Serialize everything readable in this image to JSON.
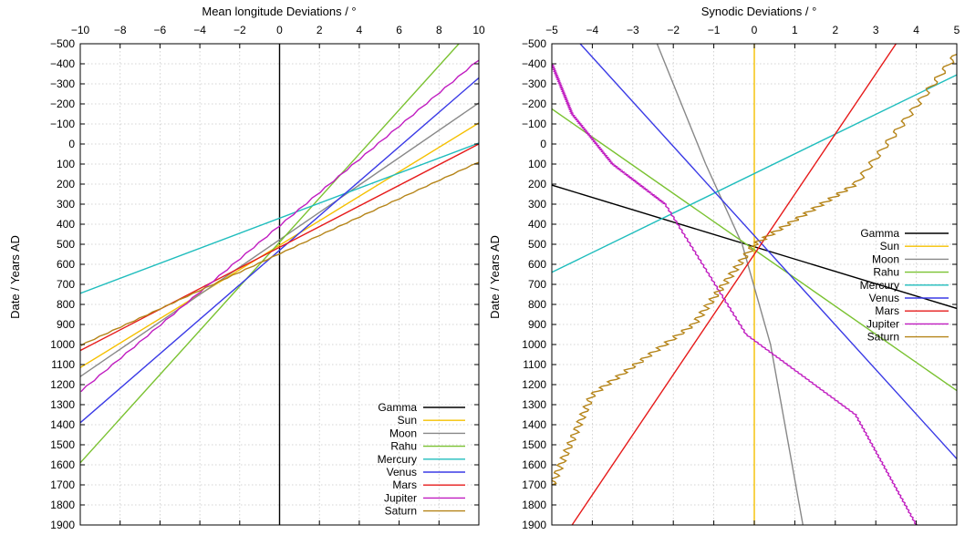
{
  "colors": {
    "Gamma": "#000000",
    "Sun": "#f5c000",
    "Moon": "#888888",
    "Rahu": "#7ac231",
    "Mercury": "#1fbdbd",
    "Venus": "#3a3ae6",
    "Mars": "#e61a1a",
    "Jupiter": "#c01cc0",
    "Saturn": "#b58418"
  },
  "chart_data": [
    {
      "type": "line",
      "title": "Mean longitude Deviations / °",
      "xlabel": "",
      "ylabel": "Date / Years AD",
      "xlim": [
        -10,
        10
      ],
      "ylim": [
        -500,
        1900
      ],
      "y_inverted": true,
      "x_axis_position": "top",
      "xticks": [
        "−10",
        "−8",
        "−6",
        "−4",
        "−2",
        "0",
        "2",
        "4",
        "6",
        "8",
        "10"
      ],
      "yticks": [
        "−500",
        "−400",
        "−300",
        "−200",
        "−100",
        "0",
        "100",
        "200",
        "300",
        "400",
        "500",
        "600",
        "700",
        "800",
        "900",
        "1000",
        "1100",
        "1200",
        "1300",
        "1400",
        "1500",
        "1600",
        "1700",
        "1800",
        "1900"
      ],
      "grid": true,
      "legend": "bottom-right",
      "series": [
        {
          "name": "Gamma",
          "points": [
            [
              0,
              -500
            ],
            [
              0,
              1900
            ]
          ]
        },
        {
          "name": "Sun",
          "points": [
            [
              -10,
              1115
            ],
            [
              10,
              -105
            ]
          ]
        },
        {
          "name": "Moon",
          "points": [
            [
              -10,
              1160
            ],
            [
              10,
              -205
            ]
          ]
        },
        {
          "name": "Rahu",
          "points": [
            [
              -10,
              1590
            ],
            [
              9,
              -500
            ]
          ]
        },
        {
          "name": "Mercury",
          "points": [
            [
              -10,
              745
            ],
            [
              10,
              -5
            ]
          ]
        },
        {
          "name": "Venus",
          "points": [
            [
              -10,
              1390
            ],
            [
              10,
              -330
            ]
          ]
        },
        {
          "name": "Mars",
          "points": [
            [
              -10,
              1030
            ],
            [
              10,
              0
            ]
          ]
        },
        {
          "name": "Jupiter",
          "points": [
            [
              -10,
              1235
            ],
            [
              10,
              -420
            ]
          ],
          "stepped": true
        },
        {
          "name": "Saturn",
          "points": [
            [
              -10,
              1005
            ],
            [
              10,
              90
            ]
          ],
          "stepped": true
        }
      ]
    },
    {
      "type": "line",
      "title": "Synodic Deviations / °",
      "xlabel": "",
      "ylabel": "Date / Years AD",
      "xlim": [
        -5,
        5
      ],
      "ylim": [
        -500,
        1900
      ],
      "y_inverted": true,
      "x_axis_position": "top",
      "xticks": [
        "−5",
        "−4",
        "−3",
        "−2",
        "−1",
        "0",
        "1",
        "2",
        "3",
        "4",
        "5"
      ],
      "yticks": [
        "−500",
        "−400",
        "−300",
        "−200",
        "−100",
        "0",
        "100",
        "200",
        "300",
        "400",
        "500",
        "600",
        "700",
        "800",
        "900",
        "1000",
        "1100",
        "1200",
        "1300",
        "1400",
        "1500",
        "1600",
        "1700",
        "1800",
        "1900"
      ],
      "grid": true,
      "legend": "right",
      "series": [
        {
          "name": "Gamma",
          "points": [
            [
              -5,
              205
            ],
            [
              5,
              820
            ]
          ]
        },
        {
          "name": "Sun",
          "points": [
            [
              0,
              -500
            ],
            [
              0,
              1900
            ]
          ]
        },
        {
          "name": "Moon",
          "points": [
            [
              -2.4,
              -500
            ],
            [
              -1.2,
              100
            ],
            [
              -0.3,
              500
            ],
            [
              0.4,
              1000
            ],
            [
              1.2,
              1900
            ]
          ]
        },
        {
          "name": "Rahu",
          "points": [
            [
              -5,
              -175
            ],
            [
              5,
              1230
            ]
          ]
        },
        {
          "name": "Mercury",
          "points": [
            [
              -5,
              640
            ],
            [
              5,
              -345
            ]
          ]
        },
        {
          "name": "Venus",
          "points": [
            [
              -4.3,
              -500
            ],
            [
              5,
              1570
            ]
          ]
        },
        {
          "name": "Mars",
          "points": [
            [
              -4.5,
              1900
            ],
            [
              3.5,
              -500
            ]
          ]
        },
        {
          "name": "Jupiter",
          "points": [
            [
              -5,
              -400
            ],
            [
              -4.5,
              -150
            ],
            [
              -3.5,
              100
            ],
            [
              -2.2,
              300
            ],
            [
              -0.2,
              950
            ],
            [
              2.5,
              1350
            ],
            [
              4,
              1900
            ]
          ],
          "stepped": true
        },
        {
          "name": "Saturn",
          "points": [
            [
              -5,
              1700
            ],
            [
              -4,
              1250
            ],
            [
              -1.5,
              900
            ],
            [
              0,
              500
            ],
            [
              2.5,
              200
            ],
            [
              5,
              -450
            ]
          ],
          "oscillating": true
        }
      ]
    }
  ]
}
